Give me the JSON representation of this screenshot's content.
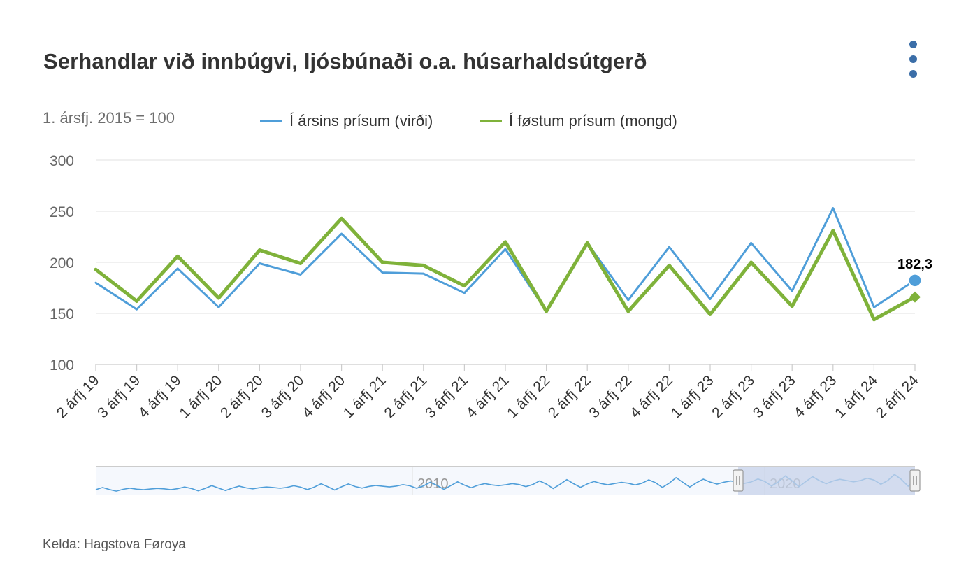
{
  "title": "Serhandlar við innbúgvi, ljósbúnaði o.a. húsarhaldsútgerð",
  "subtitle": "1. ársfj. 2015 = 100",
  "source": "Kelda: Hagstova Føroya",
  "menu_icon": "three-dots-vertical-icon",
  "colors": {
    "blue": "#4f9ed9",
    "green": "#7fb23a",
    "grid": "#e6e6e6",
    "navigator_mask": "#c7d3ea"
  },
  "chart_data": {
    "type": "line",
    "title": "Serhandlar við innbúgvi, ljósbúnaði o.a. húsarhaldsútgerð",
    "ylabel": "1. ársfj. 2015 = 100",
    "ylim": [
      100,
      300
    ],
    "yticks": [
      100,
      150,
      200,
      250,
      300
    ],
    "legend_position": "top",
    "grid": true,
    "categories": [
      "2 árfj 19",
      "3 árfj 19",
      "4 árfj 19",
      "1 árfj 20",
      "2 árfj 20",
      "3 árfj 20",
      "4 árfj 20",
      "1 árfj 21",
      "2 árfj 21",
      "3 árfj 21",
      "4 árfj 21",
      "1 árfj 22",
      "2 árfj 22",
      "3 árfj 22",
      "4 árfj 22",
      "1 árfj 23",
      "2 árfj 23",
      "3 árfj 23",
      "4 árfj 23",
      "1 árfj 24",
      "2 árfj 24"
    ],
    "series": [
      {
        "name": "Í ársins prísum (virði)",
        "color": "#4f9ed9",
        "values": [
          180,
          154,
          194,
          156,
          199,
          188,
          228,
          190,
          189,
          170,
          213,
          152,
          219,
          163,
          215,
          164,
          219,
          172,
          253,
          156,
          182.3
        ]
      },
      {
        "name": "Í føstum prísum (mongd)",
        "color": "#7fb23a",
        "values": [
          193,
          162,
          206,
          165,
          212,
          199,
          243,
          200,
          197,
          177,
          220,
          152,
          219,
          152,
          197,
          149,
          200,
          157,
          231,
          144,
          166
        ]
      }
    ],
    "highlight": {
      "series_index": 0,
      "point_index": 20,
      "label": "182,3"
    },
    "navigator": {
      "labels": [
        "2010",
        "2020"
      ]
    }
  }
}
